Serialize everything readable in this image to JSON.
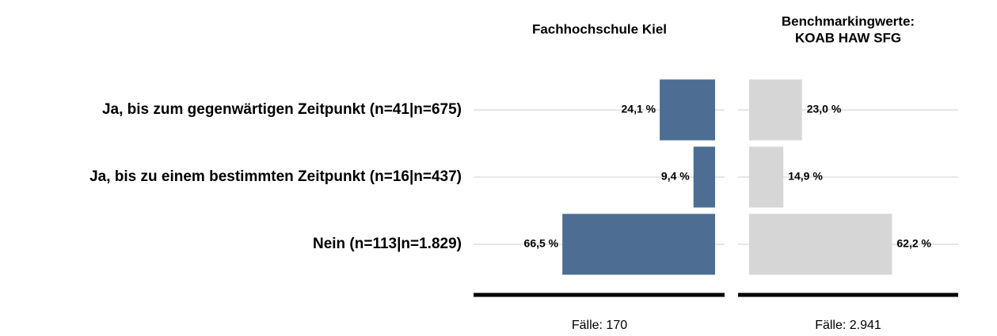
{
  "chart_data": [
    {
      "type": "bar",
      "orientation": "left",
      "title": "Fachhochschule Kiel",
      "categories": [
        "Ja, bis zum gegenwärtigen Zeitpunkt (n=41|n=675)",
        "Ja, bis zu einem bestimmten Zeitpunkt (n=16|n=437)",
        "Nein (n=113|n=1.829)"
      ],
      "values": [
        24.1,
        9.4,
        66.5
      ],
      "value_labels": [
        "24,1 %",
        "9,4 %",
        "66,5 %"
      ],
      "color": "#4d6e92",
      "xlim": [
        0,
        100
      ],
      "grid": true,
      "footer": "Fälle: 170"
    },
    {
      "type": "bar",
      "orientation": "right",
      "title": [
        "Benchmarkingwerte:",
        "KOAB HAW SFG"
      ],
      "values": [
        23.0,
        14.9,
        62.2
      ],
      "value_labels": [
        "23,0 %",
        "14,9 %",
        "62,2 %"
      ],
      "color": "#d6d6d6",
      "xlim": [
        0,
        100
      ],
      "grid": true,
      "footer": "Fälle: 2.941"
    }
  ]
}
